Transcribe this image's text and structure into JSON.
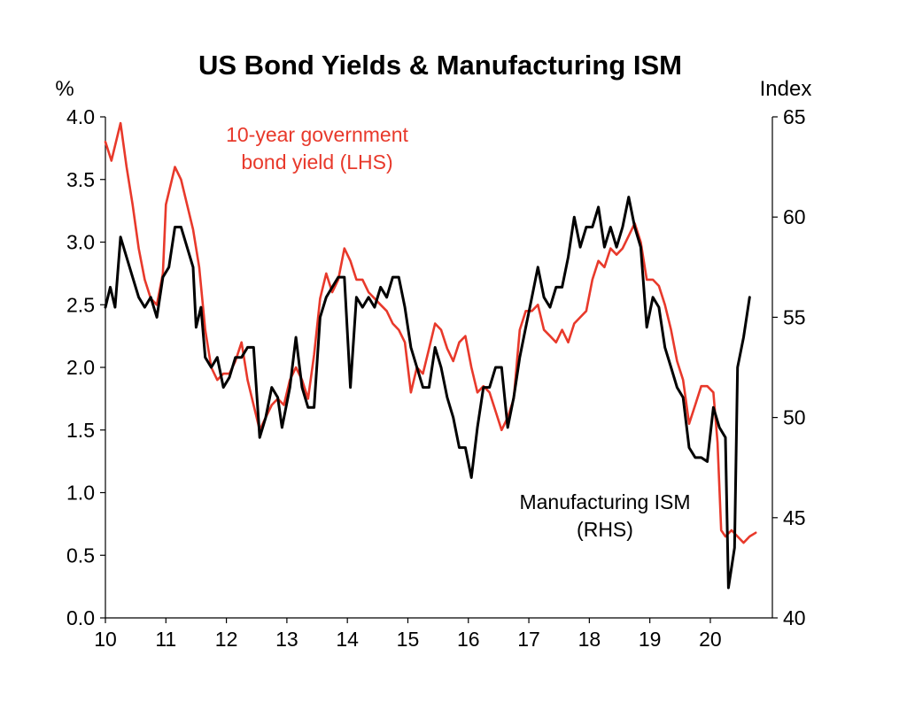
{
  "chart_data": {
    "type": "line",
    "title": "US Bond Yields & Manufacturing ISM",
    "ylabel_left": "%",
    "ylabel_right": "Index",
    "x_ticks": [
      "10",
      "11",
      "12",
      "13",
      "14",
      "15",
      "16",
      "17",
      "18",
      "19",
      "20"
    ],
    "y_left_ticks": [
      "0.0",
      "0.5",
      "1.0",
      "1.5",
      "2.0",
      "2.5",
      "3.0",
      "3.5",
      "4.0"
    ],
    "y_right_ticks": [
      "40",
      "45",
      "50",
      "55",
      "60",
      "65"
    ],
    "ylim_left": [
      0,
      4
    ],
    "ylim_right": [
      40,
      65
    ],
    "xlim": [
      2010,
      2020.85
    ],
    "grid": false,
    "annotations": {
      "yield_line1": "10-year government",
      "yield_line2": "bond yield (LHS)",
      "ism_line1": "Manufacturing ISM",
      "ism_line2": "(RHS)"
    },
    "colors": {
      "yield": "#e8392b",
      "ism": "#000000"
    },
    "series": [
      {
        "axis": "left",
        "points": [
          [
            2010.0,
            3.8
          ],
          [
            2010.1,
            3.65
          ],
          [
            2010.25,
            3.95
          ],
          [
            2010.35,
            3.6
          ],
          [
            2010.45,
            3.3
          ],
          [
            2010.55,
            2.95
          ],
          [
            2010.65,
            2.7
          ],
          [
            2010.75,
            2.55
          ],
          [
            2010.85,
            2.5
          ],
          [
            2010.95,
            2.75
          ],
          [
            2011.0,
            3.3
          ],
          [
            2011.05,
            3.4
          ],
          [
            2011.15,
            3.6
          ],
          [
            2011.25,
            3.5
          ],
          [
            2011.35,
            3.3
          ],
          [
            2011.45,
            3.1
          ],
          [
            2011.55,
            2.8
          ],
          [
            2011.65,
            2.3
          ],
          [
            2011.75,
            2.0
          ],
          [
            2011.85,
            1.9
          ],
          [
            2011.95,
            1.95
          ],
          [
            2012.05,
            1.95
          ],
          [
            2012.15,
            2.05
          ],
          [
            2012.25,
            2.2
          ],
          [
            2012.35,
            1.9
          ],
          [
            2012.45,
            1.7
          ],
          [
            2012.55,
            1.5
          ],
          [
            2012.65,
            1.6
          ],
          [
            2012.75,
            1.7
          ],
          [
            2012.85,
            1.75
          ],
          [
            2012.95,
            1.7
          ],
          [
            2013.05,
            1.9
          ],
          [
            2013.15,
            2.0
          ],
          [
            2013.25,
            1.9
          ],
          [
            2013.35,
            1.75
          ],
          [
            2013.45,
            2.1
          ],
          [
            2013.55,
            2.55
          ],
          [
            2013.65,
            2.75
          ],
          [
            2013.75,
            2.6
          ],
          [
            2013.85,
            2.7
          ],
          [
            2013.95,
            2.95
          ],
          [
            2014.05,
            2.85
          ],
          [
            2014.15,
            2.7
          ],
          [
            2014.25,
            2.7
          ],
          [
            2014.35,
            2.6
          ],
          [
            2014.45,
            2.55
          ],
          [
            2014.55,
            2.5
          ],
          [
            2014.65,
            2.45
          ],
          [
            2014.75,
            2.35
          ],
          [
            2014.85,
            2.3
          ],
          [
            2014.95,
            2.2
          ],
          [
            2015.05,
            1.8
          ],
          [
            2015.15,
            2.0
          ],
          [
            2015.25,
            1.95
          ],
          [
            2015.35,
            2.15
          ],
          [
            2015.45,
            2.35
          ],
          [
            2015.55,
            2.3
          ],
          [
            2015.65,
            2.15
          ],
          [
            2015.75,
            2.05
          ],
          [
            2015.85,
            2.2
          ],
          [
            2015.95,
            2.25
          ],
          [
            2016.05,
            2.0
          ],
          [
            2016.15,
            1.8
          ],
          [
            2016.25,
            1.85
          ],
          [
            2016.35,
            1.8
          ],
          [
            2016.45,
            1.65
          ],
          [
            2016.55,
            1.5
          ],
          [
            2016.65,
            1.6
          ],
          [
            2016.75,
            1.75
          ],
          [
            2016.85,
            2.3
          ],
          [
            2016.95,
            2.45
          ],
          [
            2017.05,
            2.45
          ],
          [
            2017.15,
            2.5
          ],
          [
            2017.25,
            2.3
          ],
          [
            2017.35,
            2.25
          ],
          [
            2017.45,
            2.2
          ],
          [
            2017.55,
            2.3
          ],
          [
            2017.65,
            2.2
          ],
          [
            2017.75,
            2.35
          ],
          [
            2017.85,
            2.4
          ],
          [
            2017.95,
            2.45
          ],
          [
            2018.05,
            2.7
          ],
          [
            2018.15,
            2.85
          ],
          [
            2018.25,
            2.8
          ],
          [
            2018.35,
            2.95
          ],
          [
            2018.45,
            2.9
          ],
          [
            2018.55,
            2.95
          ],
          [
            2018.65,
            3.05
          ],
          [
            2018.75,
            3.15
          ],
          [
            2018.85,
            3.0
          ],
          [
            2018.95,
            2.7
          ],
          [
            2019.05,
            2.7
          ],
          [
            2019.15,
            2.65
          ],
          [
            2019.25,
            2.5
          ],
          [
            2019.35,
            2.3
          ],
          [
            2019.45,
            2.05
          ],
          [
            2019.55,
            1.9
          ],
          [
            2019.65,
            1.55
          ],
          [
            2019.75,
            1.7
          ],
          [
            2019.85,
            1.85
          ],
          [
            2019.95,
            1.85
          ],
          [
            2020.05,
            1.8
          ],
          [
            2020.12,
            1.4
          ],
          [
            2020.18,
            0.7
          ],
          [
            2020.25,
            0.65
          ],
          [
            2020.35,
            0.7
          ],
          [
            2020.45,
            0.65
          ],
          [
            2020.55,
            0.6
          ],
          [
            2020.65,
            0.65
          ],
          [
            2020.75,
            0.68
          ]
        ]
      },
      {
        "axis": "right",
        "points": [
          [
            2010.0,
            55.5
          ],
          [
            2010.08,
            56.5
          ],
          [
            2010.16,
            55.5
          ],
          [
            2010.25,
            59.0
          ],
          [
            2010.35,
            58.0
          ],
          [
            2010.45,
            57.0
          ],
          [
            2010.55,
            56.0
          ],
          [
            2010.65,
            55.5
          ],
          [
            2010.75,
            56.0
          ],
          [
            2010.85,
            55.0
          ],
          [
            2010.95,
            57.0
          ],
          [
            2011.05,
            57.5
          ],
          [
            2011.15,
            59.5
          ],
          [
            2011.25,
            59.5
          ],
          [
            2011.35,
            58.5
          ],
          [
            2011.45,
            57.5
          ],
          [
            2011.5,
            54.5
          ],
          [
            2011.58,
            55.5
          ],
          [
            2011.65,
            53.0
          ],
          [
            2011.75,
            52.5
          ],
          [
            2011.85,
            53.0
          ],
          [
            2011.95,
            51.5
          ],
          [
            2012.05,
            52.0
          ],
          [
            2012.15,
            53.0
          ],
          [
            2012.25,
            53.0
          ],
          [
            2012.35,
            53.5
          ],
          [
            2012.45,
            53.5
          ],
          [
            2012.55,
            49.0
          ],
          [
            2012.65,
            50.0
          ],
          [
            2012.75,
            51.5
          ],
          [
            2012.85,
            51.0
          ],
          [
            2012.92,
            49.5
          ],
          [
            2013.05,
            51.5
          ],
          [
            2013.15,
            54.0
          ],
          [
            2013.25,
            51.5
          ],
          [
            2013.35,
            50.5
          ],
          [
            2013.45,
            50.5
          ],
          [
            2013.55,
            55.0
          ],
          [
            2013.65,
            56.0
          ],
          [
            2013.75,
            56.5
          ],
          [
            2013.85,
            57.0
          ],
          [
            2013.95,
            57.0
          ],
          [
            2014.05,
            51.5
          ],
          [
            2014.15,
            56.0
          ],
          [
            2014.25,
            55.5
          ],
          [
            2014.35,
            56.0
          ],
          [
            2014.45,
            55.5
          ],
          [
            2014.55,
            56.5
          ],
          [
            2014.65,
            56.0
          ],
          [
            2014.75,
            57.0
          ],
          [
            2014.85,
            57.0
          ],
          [
            2014.95,
            55.5
          ],
          [
            2015.05,
            53.5
          ],
          [
            2015.15,
            52.5
          ],
          [
            2015.25,
            51.5
          ],
          [
            2015.35,
            51.5
          ],
          [
            2015.45,
            53.5
          ],
          [
            2015.55,
            52.5
          ],
          [
            2015.65,
            51.0
          ],
          [
            2015.75,
            50.0
          ],
          [
            2015.85,
            48.5
          ],
          [
            2015.95,
            48.5
          ],
          [
            2016.05,
            47.0
          ],
          [
            2016.15,
            49.5
          ],
          [
            2016.25,
            51.5
          ],
          [
            2016.35,
            51.5
          ],
          [
            2016.45,
            52.5
          ],
          [
            2016.55,
            52.5
          ],
          [
            2016.65,
            49.5
          ],
          [
            2016.75,
            51.0
          ],
          [
            2016.85,
            53.0
          ],
          [
            2016.95,
            54.5
          ],
          [
            2017.05,
            56.0
          ],
          [
            2017.15,
            57.5
          ],
          [
            2017.25,
            56.0
          ],
          [
            2017.35,
            55.5
          ],
          [
            2017.45,
            56.5
          ],
          [
            2017.55,
            56.5
          ],
          [
            2017.65,
            58.0
          ],
          [
            2017.75,
            60.0
          ],
          [
            2017.85,
            58.5
          ],
          [
            2017.95,
            59.5
          ],
          [
            2018.05,
            59.5
          ],
          [
            2018.15,
            60.5
          ],
          [
            2018.25,
            58.5
          ],
          [
            2018.35,
            59.5
          ],
          [
            2018.45,
            58.5
          ],
          [
            2018.55,
            59.5
          ],
          [
            2018.65,
            61.0
          ],
          [
            2018.75,
            59.5
          ],
          [
            2018.85,
            58.5
          ],
          [
            2018.95,
            54.5
          ],
          [
            2019.05,
            56.0
          ],
          [
            2019.15,
            55.5
          ],
          [
            2019.25,
            53.5
          ],
          [
            2019.35,
            52.5
          ],
          [
            2019.45,
            51.5
          ],
          [
            2019.55,
            51.0
          ],
          [
            2019.65,
            48.5
          ],
          [
            2019.75,
            48.0
          ],
          [
            2019.85,
            48.0
          ],
          [
            2019.95,
            47.8
          ],
          [
            2020.05,
            50.5
          ],
          [
            2020.15,
            49.5
          ],
          [
            2020.25,
            49.0
          ],
          [
            2020.3,
            41.5
          ],
          [
            2020.4,
            43.5
          ],
          [
            2020.45,
            52.5
          ],
          [
            2020.55,
            54.0
          ],
          [
            2020.65,
            56.0
          ]
        ]
      }
    ]
  }
}
